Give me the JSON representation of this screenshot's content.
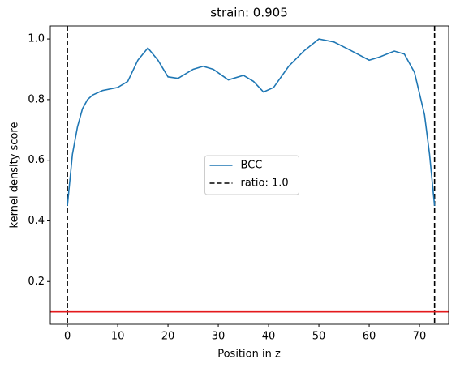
{
  "chart_data": {
    "type": "line",
    "title": "strain: 0.905",
    "x_label": "Position in z",
    "y_label": "kernel density score",
    "series": [
      {
        "name": "BCC",
        "color": "#1f77b4",
        "x": [
          0,
          1,
          2,
          3,
          4,
          5,
          7,
          10,
          12,
          14,
          16,
          18,
          20,
          22,
          25,
          27,
          29,
          32,
          35,
          37,
          39,
          41,
          44,
          47,
          50,
          53,
          56,
          60,
          62,
          65,
          67,
          69,
          71,
          72,
          73
        ],
        "values": [
          0.45,
          0.62,
          0.71,
          0.77,
          0.8,
          0.815,
          0.83,
          0.84,
          0.86,
          0.93,
          0.97,
          0.93,
          0.875,
          0.87,
          0.9,
          0.91,
          0.9,
          0.865,
          0.88,
          0.86,
          0.825,
          0.84,
          0.91,
          0.96,
          1.0,
          0.99,
          0.965,
          0.93,
          0.94,
          0.96,
          0.95,
          0.89,
          0.75,
          0.62,
          0.45
        ]
      }
    ],
    "reference_lines": {
      "name": "ratio: 1.0",
      "color": "#000000",
      "style": "dashed",
      "x": [
        0,
        73
      ]
    },
    "hline": {
      "y": 0.1,
      "color": "#e41a1c"
    },
    "xlim": [
      -3.4,
      75.8
    ],
    "ylim": [
      0.059,
      1.043
    ],
    "xticks": [
      0,
      10,
      20,
      30,
      40,
      50,
      60,
      70
    ],
    "yticks": [
      0.2,
      0.4,
      0.6,
      0.8,
      {
        "value": 1,
        "label": "1.0"
      }
    ],
    "legend": "center"
  }
}
